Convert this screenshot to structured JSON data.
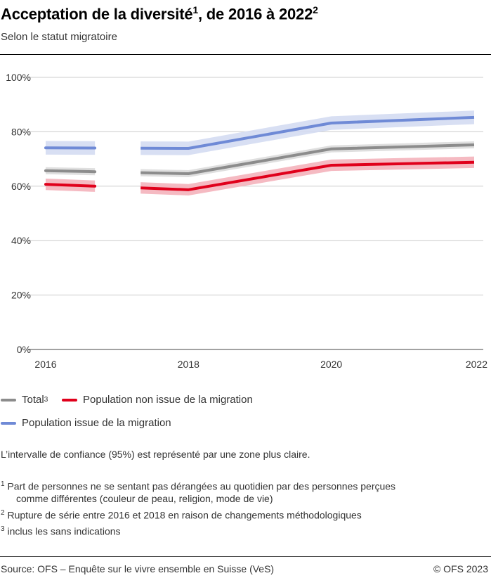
{
  "title": {
    "text": "Acceptation de la diversité",
    "sup1": "1",
    "text2": ", de 2016 à  2022",
    "sup2": "2"
  },
  "subtitle": "Selon le statut migratoire",
  "chart_data": {
    "type": "line",
    "x": [
      2016,
      2018,
      2020,
      2022
    ],
    "xticks": [
      "2016",
      "2018",
      "2020",
      "2022"
    ],
    "ylim": [
      0,
      100
    ],
    "yticks": [
      "0%",
      "20%",
      "40%",
      "60%",
      "80%",
      "100%"
    ],
    "grid": true,
    "series_break": "between 2016 and 2018",
    "confidence_interval": "95%",
    "series": [
      {
        "name": "Total",
        "color": "#8c8c8c",
        "band_color": "#dcdcdc",
        "values": [
          65.7,
          64.6,
          73.7,
          75.2
        ],
        "ci": [
          1.3,
          1.3,
          1.3,
          1.3
        ]
      },
      {
        "name": "Population non issue de la migration",
        "color": "#e0001b",
        "band_color": "#f4b3bb",
        "values": [
          60.7,
          58.7,
          67.7,
          68.8
        ],
        "ci": [
          2.1,
          2.1,
          2.1,
          2.1
        ]
      },
      {
        "name": "Population issue de la migration",
        "color": "#6f8ad6",
        "band_color": "#d4dcf2",
        "values": [
          74.1,
          73.9,
          83.2,
          85.3
        ],
        "ci": [
          2.5,
          2.5,
          2.5,
          2.5
        ]
      }
    ]
  },
  "legend": [
    {
      "label": "Total",
      "sup": "3",
      "color": "#8c8c8c"
    },
    {
      "label": "Population non issue de la migration",
      "sup": "",
      "color": "#e0001b"
    },
    {
      "label": "Population issue de la migration",
      "sup": "",
      "color": "#6f8ad6"
    }
  ],
  "ci_note": "L’intervalle de confiance (95%) est représenté par une zone plus claire.",
  "footnotes": [
    {
      "n": "1",
      "text": "Part de personnes ne se sentant pas dérangées au quotidien par des personnes perçues",
      "text2": "comme différentes (couleur de peau, religion, mode de vie)"
    },
    {
      "n": "2",
      "text": "Rupture de série entre 2016 et 2018 en raison de changements méthodologiques"
    },
    {
      "n": "3",
      "text": "inclus les sans indications"
    }
  ],
  "source": "Source: OFS – Enquête sur le vivre ensemble en Suisse (VeS)",
  "copyright": "© OFS 2023"
}
